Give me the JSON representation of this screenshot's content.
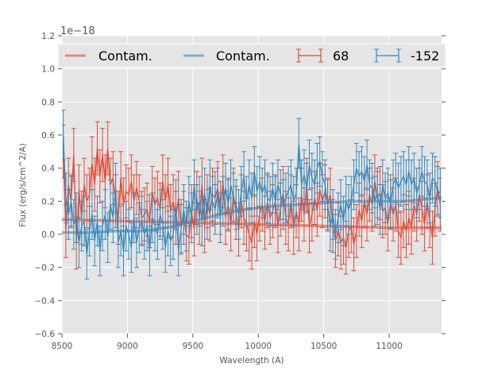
{
  "chart_data": {
    "type": "line",
    "title": "",
    "xlabel": "Wavelength (A)",
    "ylabel": "Flux (erg/s/cm^2/A)",
    "offset_text": "1e−18",
    "xlim": [
      8500,
      11400
    ],
    "ylim": [
      -0.6,
      1.2
    ],
    "xticks": [
      8500,
      9000,
      9500,
      10000,
      10500,
      11000
    ],
    "xtick_labels": [
      "8500",
      "9000",
      "9500",
      "10000",
      "10500",
      "11000"
    ],
    "yticks": [
      -0.6,
      -0.4,
      -0.2,
      0.0,
      0.2,
      0.4,
      0.6,
      0.8,
      1.0,
      1.2
    ],
    "ytick_labels": [
      "−0.6",
      "−0.4",
      "−0.2",
      "0.0",
      "0.2",
      "0.4",
      "0.6",
      "0.8",
      "1.0",
      "1.2"
    ],
    "grid": true,
    "legend": {
      "placement": "top",
      "ncol": 4
    },
    "colors": {
      "red": "#E24A33",
      "blue": "#348ABD",
      "background": "#E5E5E5"
    },
    "series": [
      {
        "name": "Contam.",
        "kind": "contam",
        "color": "#E24A33",
        "x": [
          8500,
          9000,
          9500,
          10000,
          10500,
          11000,
          11400
        ],
        "y": [
          0.09,
          0.08,
          0.07,
          0.06,
          0.05,
          0.04,
          0.04
        ]
      },
      {
        "name": "Contam.",
        "kind": "contam",
        "color": "#348ABD",
        "x": [
          8500,
          8700,
          8900,
          9100,
          9300,
          9500,
          9700,
          9900,
          10100,
          10300,
          10500,
          10700,
          10900,
          11100,
          11400
        ],
        "y": [
          0.01,
          0.01,
          0.02,
          0.02,
          0.04,
          0.08,
          0.12,
          0.15,
          0.17,
          0.18,
          0.19,
          0.2,
          0.2,
          0.2,
          0.22
        ]
      },
      {
        "name": "68",
        "kind": "errorbar",
        "color": "#E24A33",
        "x": [
          8510,
          8530,
          8550,
          8570,
          8590,
          8610,
          8630,
          8650,
          8670,
          8690,
          8710,
          8730,
          8750,
          8770,
          8790,
          8810,
          8830,
          8850,
          8870,
          8890,
          8910,
          8930,
          8950,
          8970,
          8990,
          9010,
          9030,
          9050,
          9070,
          9090,
          9110,
          9130,
          9150,
          9170,
          9190,
          9210,
          9230,
          9250,
          9270,
          9290,
          9310,
          9330,
          9350,
          9370,
          9390,
          9410,
          9430,
          9450,
          9470,
          9490,
          9510,
          9530,
          9550,
          9570,
          9590,
          9610,
          9630,
          9650,
          9670,
          9690,
          9710,
          9730,
          9750,
          9770,
          9790,
          9810,
          9830,
          9850,
          9870,
          9890,
          9910,
          9930,
          9950,
          9970,
          9990,
          10010,
          10030,
          10050,
          10070,
          10090,
          10110,
          10130,
          10150,
          10170,
          10190,
          10210,
          10230,
          10250,
          10270,
          10290,
          10310,
          10330,
          10350,
          10370,
          10390,
          10410,
          10430,
          10450,
          10470,
          10490,
          10510,
          10530,
          10550,
          10570,
          10590,
          10610,
          10630,
          10650,
          10670,
          10690,
          10710,
          10730,
          10750,
          10770,
          10790,
          10810,
          10830,
          10850,
          10870,
          10890,
          10910,
          10930,
          10950,
          10970,
          10990,
          11010,
          11030,
          11050,
          11070,
          11090,
          11110,
          11130,
          11150,
          11170,
          11190,
          11210,
          11230,
          11250,
          11270,
          11290,
          11310,
          11330,
          11350,
          11370,
          11390
        ],
        "y": [
          0.5,
          0.02,
          0.3,
          0.2,
          0.48,
          -0.05,
          0.26,
          0.1,
          0.3,
          0.2,
          0.24,
          0.43,
          0.3,
          0.52,
          0.35,
          0.48,
          0.32,
          0.52,
          0.3,
          0.34,
          0.2,
          0.1,
          0.34,
          0.18,
          0.26,
          0.24,
          0.32,
          0.2,
          0.28,
          0.2,
          0.1,
          0.12,
          0.15,
          0.08,
          0.25,
          0.18,
          0.22,
          0.15,
          0.32,
          0.2,
          0.3,
          0.14,
          0.2,
          0.1,
          0.22,
          0.05,
          0.1,
          0.0,
          -0.02,
          0.14,
          0.03,
          0.22,
          0.1,
          0.3,
          0.05,
          0.2,
          0.12,
          0.24,
          0.22,
          0.28,
          0.16,
          0.32,
          0.1,
          0.18,
          0.06,
          0.24,
          0.13,
          0.03,
          0.2,
          0.1,
          0.06,
          0.0,
          -0.05,
          0.08,
          0.0,
          0.12,
          0.18,
          0.07,
          0.2,
          0.1,
          0.14,
          0.2,
          0.05,
          0.15,
          0.25,
          0.1,
          0.06,
          0.2,
          0.04,
          0.14,
          0.06,
          0.24,
          0.12,
          0.3,
          0.05,
          0.12,
          0.22,
          0.15,
          0.27,
          0.2,
          0.26,
          0.18,
          0.24,
          0.05,
          -0.04,
          0.03,
          -0.05,
          -0.02,
          -0.08,
          0.02,
          0.05,
          -0.06,
          0.02,
          0.15,
          0.08,
          0.2,
          0.12,
          0.24,
          0.18,
          0.32,
          0.22,
          0.25,
          0.14,
          0.16,
          0.06,
          0.2,
          0.12,
          0.18,
          0.02,
          -0.02,
          0.08,
          0.02,
          0.1,
          0.04,
          0.18,
          0.12,
          0.24,
          0.16,
          0.06,
          0.2,
          0.08,
          -0.02,
          0.15,
          0.28,
          0.18
        ],
        "err": 0.16
      },
      {
        "name": "-152",
        "kind": "errorbar",
        "color": "#348ABD",
        "x": [
          8510,
          8530,
          8550,
          8570,
          8590,
          8610,
          8630,
          8650,
          8670,
          8690,
          8710,
          8730,
          8750,
          8770,
          8790,
          8810,
          8830,
          8850,
          8870,
          8890,
          8910,
          8930,
          8950,
          8970,
          8990,
          9010,
          9030,
          9050,
          9070,
          9090,
          9110,
          9130,
          9150,
          9170,
          9190,
          9210,
          9230,
          9250,
          9270,
          9290,
          9310,
          9330,
          9350,
          9370,
          9390,
          9410,
          9430,
          9450,
          9470,
          9490,
          9510,
          9530,
          9550,
          9570,
          9590,
          9610,
          9630,
          9650,
          9670,
          9690,
          9710,
          9730,
          9750,
          9770,
          9790,
          9810,
          9830,
          9850,
          9870,
          9890,
          9910,
          9930,
          9950,
          9970,
          9990,
          10010,
          10030,
          10050,
          10070,
          10090,
          10110,
          10130,
          10150,
          10170,
          10190,
          10210,
          10230,
          10250,
          10270,
          10290,
          10310,
          10330,
          10350,
          10370,
          10390,
          10410,
          10430,
          10450,
          10470,
          10490,
          10510,
          10530,
          10550,
          10570,
          10590,
          10610,
          10630,
          10650,
          10670,
          10690,
          10710,
          10730,
          10750,
          10770,
          10790,
          10810,
          10830,
          10850,
          10870,
          10890,
          10910,
          10930,
          10950,
          10970,
          10990,
          11010,
          11030,
          11050,
          11070,
          11090,
          11110,
          11130,
          11150,
          11170,
          11190,
          11210,
          11230,
          11250,
          11270,
          11290,
          11310,
          11330,
          11350,
          11370,
          11390
        ],
        "y": [
          0.6,
          0.22,
          0.12,
          0.2,
          0.06,
          0.1,
          -0.05,
          0.05,
          0.08,
          -0.12,
          0.02,
          0.12,
          -0.04,
          0.08,
          -0.1,
          0.05,
          0.12,
          -0.02,
          0.18,
          0.1,
          0.28,
          -0.05,
          0.02,
          -0.1,
          0.05,
          0.0,
          -0.08,
          0.1,
          -0.05,
          0.04,
          0.08,
          0.0,
          0.05,
          -0.1,
          0.1,
          0.05,
          0.0,
          0.12,
          0.06,
          -0.08,
          0.02,
          -0.04,
          0.0,
          0.18,
          -0.1,
          0.03,
          0.15,
          0.05,
          0.2,
          0.1,
          0.3,
          0.15,
          0.2,
          0.08,
          0.25,
          0.12,
          0.3,
          0.2,
          0.15,
          0.25,
          0.1,
          0.2,
          0.28,
          0.18,
          0.3,
          0.22,
          0.18,
          0.12,
          0.26,
          0.35,
          0.2,
          0.3,
          0.22,
          0.38,
          0.26,
          0.32,
          0.25,
          0.3,
          0.22,
          0.2,
          0.28,
          0.2,
          0.3,
          0.24,
          0.18,
          0.22,
          0.26,
          0.3,
          0.2,
          0.25,
          0.55,
          0.3,
          0.36,
          0.28,
          0.42,
          0.34,
          0.3,
          0.4,
          0.44,
          0.35,
          0.3,
          0.18,
          0.05,
          0.12,
          0.0,
          0.1,
          0.18,
          0.08,
          0.2,
          0.15,
          0.2,
          0.3,
          0.4,
          0.35,
          0.38,
          0.32,
          0.42,
          0.3,
          0.28,
          0.2,
          0.25,
          0.15,
          0.3,
          0.22,
          0.25,
          0.18,
          0.3,
          0.34,
          0.28,
          0.32,
          0.35,
          0.3,
          0.38,
          0.3,
          0.34,
          0.25,
          0.3,
          0.38,
          0.32,
          0.3,
          0.22,
          0.34,
          0.32,
          0.26,
          0.25
        ],
        "err": 0.15
      }
    ]
  }
}
